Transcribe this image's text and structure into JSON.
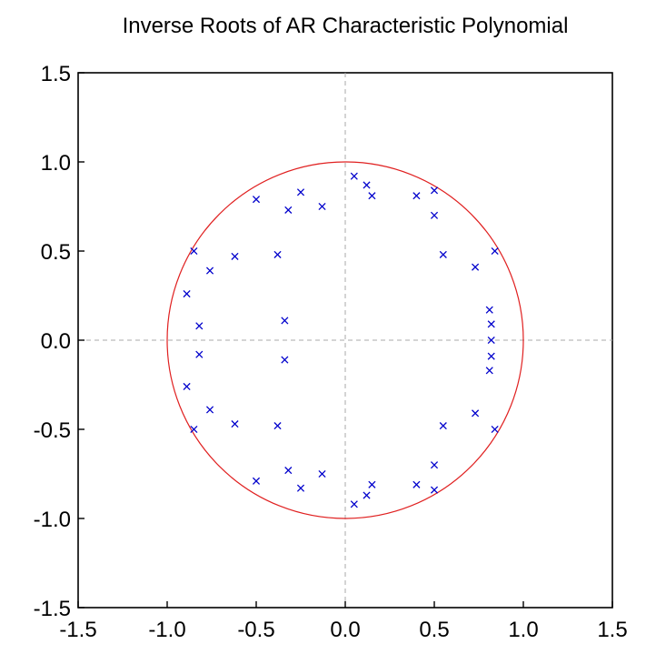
{
  "chart_data": {
    "type": "scatter",
    "title": "Inverse Roots of AR Characteristic Polynomial",
    "xlabel": "",
    "ylabel": "",
    "xlim": [
      -1.5,
      1.5
    ],
    "ylim": [
      -1.5,
      1.5
    ],
    "xticks": [
      "-1.5",
      "-1.0",
      "-0.5",
      "0.0",
      "0.5",
      "1.0",
      "1.5"
    ],
    "yticks": [
      "1.5",
      "1.0",
      "0.5",
      "0.0",
      "-0.5",
      "-1.0",
      "-1.5"
    ],
    "grid": false,
    "zero_lines": true,
    "unit_circle": {
      "radius": 1.0,
      "color": "#e02020"
    },
    "marker": "x",
    "marker_color": "#0000cc",
    "points": [
      {
        "x": 0.05,
        "y": 0.92
      },
      {
        "x": 0.05,
        "y": -0.92
      },
      {
        "x": 0.12,
        "y": 0.87
      },
      {
        "x": 0.12,
        "y": -0.87
      },
      {
        "x": 0.15,
        "y": 0.81
      },
      {
        "x": 0.15,
        "y": -0.81
      },
      {
        "x": -0.25,
        "y": 0.83
      },
      {
        "x": -0.25,
        "y": -0.83
      },
      {
        "x": -0.5,
        "y": 0.79
      },
      {
        "x": -0.5,
        "y": -0.79
      },
      {
        "x": -0.32,
        "y": 0.73
      },
      {
        "x": -0.32,
        "y": -0.73
      },
      {
        "x": -0.13,
        "y": 0.75
      },
      {
        "x": -0.13,
        "y": -0.75
      },
      {
        "x": 0.4,
        "y": 0.81
      },
      {
        "x": 0.4,
        "y": -0.81
      },
      {
        "x": 0.5,
        "y": 0.84
      },
      {
        "x": 0.5,
        "y": -0.84
      },
      {
        "x": 0.5,
        "y": 0.7
      },
      {
        "x": 0.5,
        "y": -0.7
      },
      {
        "x": 0.55,
        "y": 0.48
      },
      {
        "x": 0.55,
        "y": -0.48
      },
      {
        "x": 0.84,
        "y": 0.5
      },
      {
        "x": 0.84,
        "y": -0.5
      },
      {
        "x": 0.73,
        "y": 0.41
      },
      {
        "x": 0.73,
        "y": -0.41
      },
      {
        "x": -0.38,
        "y": 0.48
      },
      {
        "x": -0.38,
        "y": -0.48
      },
      {
        "x": -0.62,
        "y": 0.47
      },
      {
        "x": -0.62,
        "y": -0.47
      },
      {
        "x": -0.85,
        "y": 0.5
      },
      {
        "x": -0.85,
        "y": -0.5
      },
      {
        "x": -0.76,
        "y": 0.39
      },
      {
        "x": -0.76,
        "y": -0.39
      },
      {
        "x": -0.89,
        "y": 0.26
      },
      {
        "x": -0.89,
        "y": -0.26
      },
      {
        "x": -0.82,
        "y": 0.08
      },
      {
        "x": -0.82,
        "y": -0.08
      },
      {
        "x": -0.34,
        "y": 0.11
      },
      {
        "x": -0.34,
        "y": -0.11
      },
      {
        "x": 0.81,
        "y": 0.17
      },
      {
        "x": 0.81,
        "y": -0.17
      },
      {
        "x": 0.82,
        "y": 0.09
      },
      {
        "x": 0.82,
        "y": -0.09
      },
      {
        "x": 0.82,
        "y": 0.0
      }
    ]
  }
}
